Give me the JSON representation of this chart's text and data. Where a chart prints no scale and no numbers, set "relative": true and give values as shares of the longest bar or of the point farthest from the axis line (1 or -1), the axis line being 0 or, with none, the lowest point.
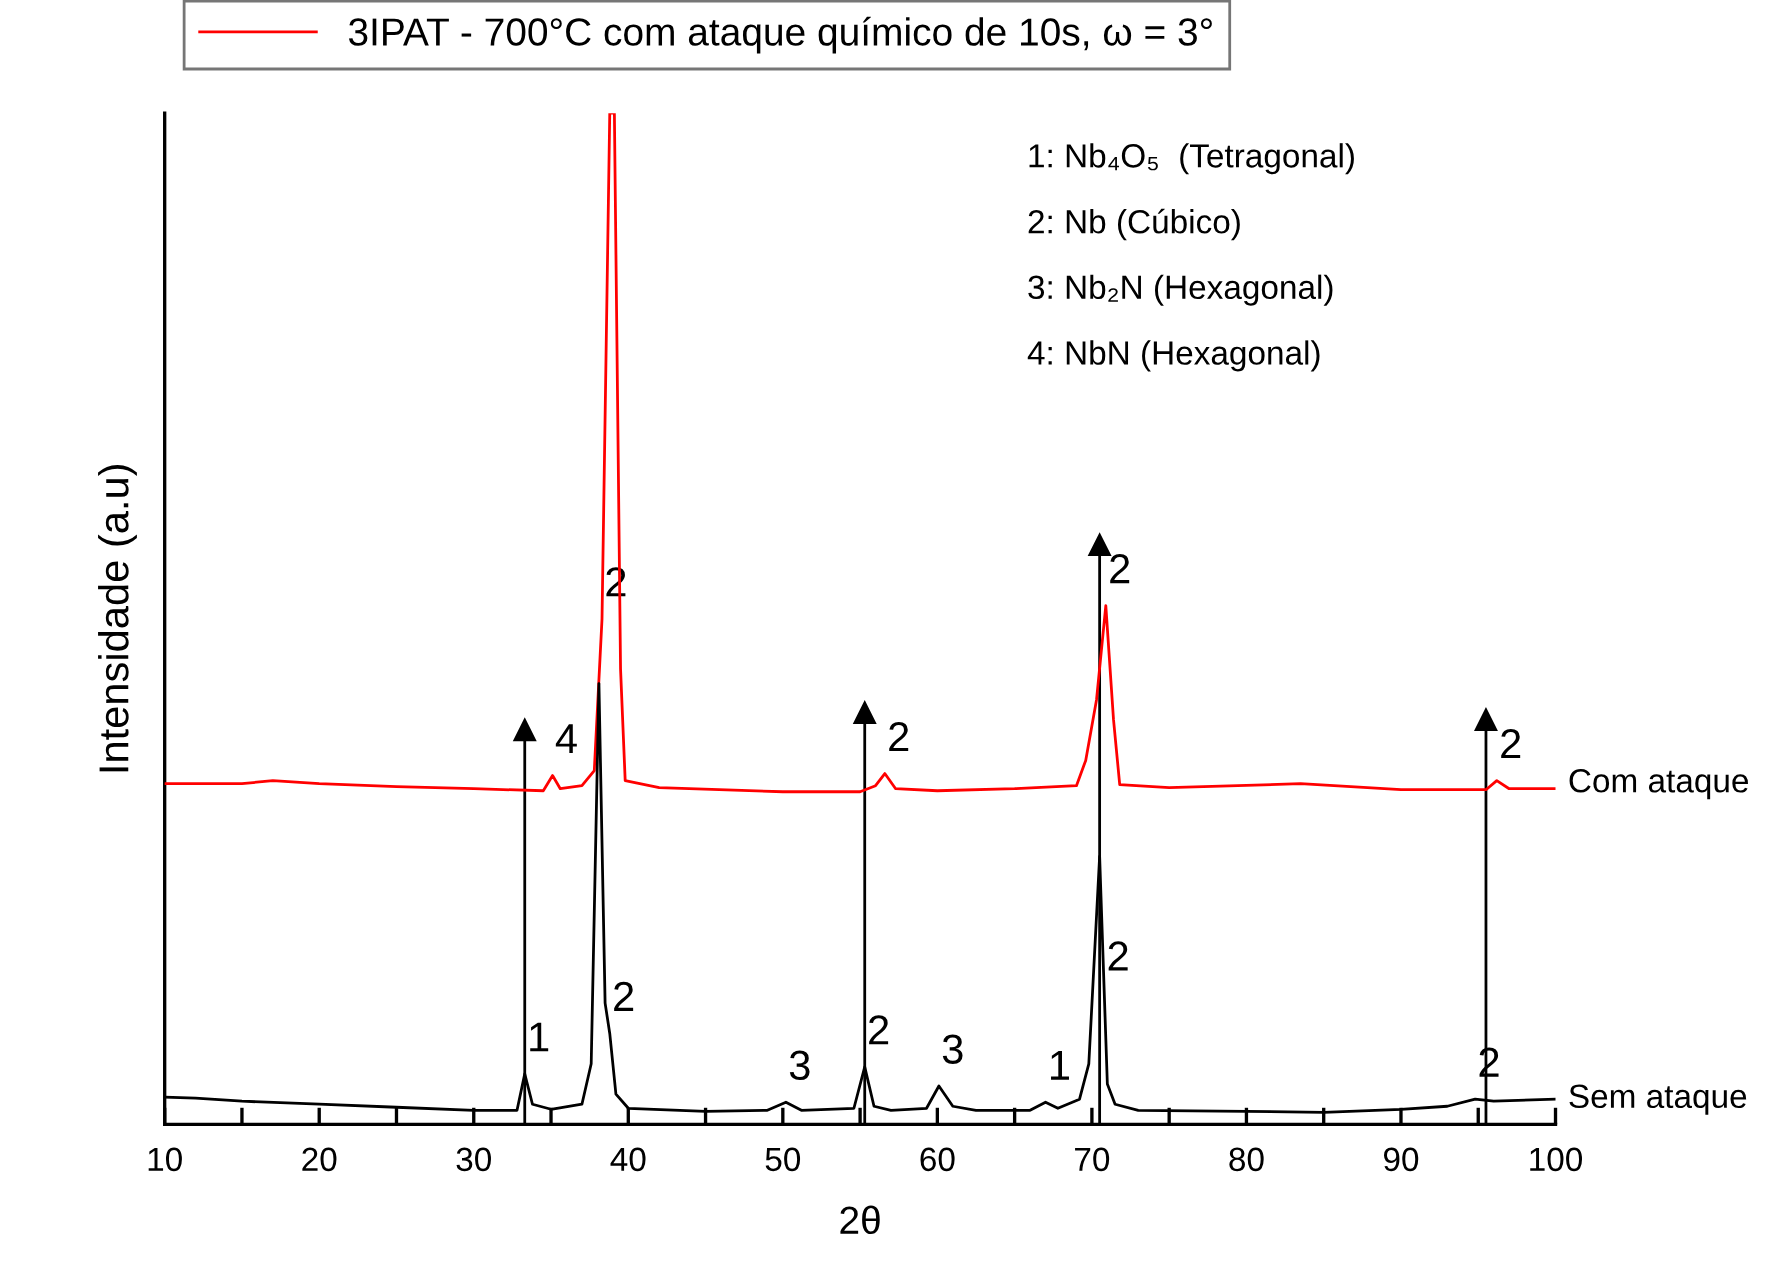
{
  "chart_data": {
    "type": "line",
    "relative": true,
    "xlabel": "2θ",
    "ylabel": "Intensidade (a.u)",
    "xlim": [
      10,
      100
    ],
    "xticks": [
      10,
      {
        "value": 15,
        "label": null
      },
      20,
      {
        "value": 25,
        "label": null
      },
      30,
      {
        "value": 35,
        "label": null
      },
      40,
      {
        "value": 45,
        "label": null
      },
      50,
      {
        "value": 55,
        "label": null
      },
      60,
      {
        "value": 65,
        "label": null
      },
      70,
      {
        "value": 75,
        "label": null
      },
      80,
      {
        "value": 85,
        "label": null
      },
      90,
      {
        "value": 95,
        "label": null
      },
      100
    ],
    "legend": "top",
    "grid": false,
    "marker": "none",
    "line_style": "solid",
    "series": [
      {
        "color": "#000000",
        "x": [
          10,
          12,
          15,
          20,
          25,
          30,
          32.8,
          33.3,
          33.8,
          35,
          37,
          37.6,
          38.1,
          38.5,
          38.8,
          39.2,
          40,
          45,
          49,
          50.2,
          51.2,
          54.6,
          55.3,
          55.9,
          57,
          59.3,
          60.1,
          61,
          62.5,
          66,
          67,
          67.8,
          69.2,
          69.8,
          70.5,
          71,
          71.5,
          73,
          80,
          85,
          90,
          93,
          94.8,
          96,
          100
        ],
        "values": [
          0.027,
          0.026,
          0.023,
          0.02,
          0.017,
          0.014,
          0.014,
          0.05,
          0.02,
          0.015,
          0.02,
          0.06,
          0.436,
          0.12,
          0.09,
          0.03,
          0.016,
          0.013,
          0.014,
          0.022,
          0.014,
          0.016,
          0.057,
          0.018,
          0.014,
          0.016,
          0.038,
          0.018,
          0.014,
          0.014,
          0.022,
          0.016,
          0.025,
          0.06,
          0.265,
          0.04,
          0.02,
          0.014,
          0.013,
          0.012,
          0.015,
          0.018,
          0.025,
          0.023,
          0.025
        ]
      },
      {
        "name": "3IPAT - 700°C com ataque químico de 10s, ω = 3°",
        "color": "#ff0000",
        "x": [
          10,
          15,
          17,
          20,
          25,
          30,
          34.5,
          35.1,
          35.6,
          37,
          37.8,
          38.3,
          38.8,
          39.1,
          39.5,
          39.8,
          42,
          50,
          55,
          56,
          56.6,
          57.3,
          60,
          65,
          69,
          69.6,
          70.3,
          70.9,
          71.4,
          71.8,
          75,
          83.5,
          90,
          95.5,
          96.2,
          97,
          100
        ],
        "values": [
          0.337,
          0.337,
          0.34,
          0.337,
          0.334,
          0.332,
          0.33,
          0.345,
          0.332,
          0.335,
          0.35,
          0.5,
          1.0,
          1.0,
          0.45,
          0.34,
          0.333,
          0.329,
          0.329,
          0.335,
          0.347,
          0.332,
          0.33,
          0.332,
          0.335,
          0.36,
          0.42,
          0.513,
          0.4,
          0.336,
          0.333,
          0.337,
          0.331,
          0.331,
          0.34,
          0.332,
          0.332
        ]
      }
    ],
    "annotations": [
      "1: Nb₄O₅  (Tetragonal)",
      "2: Nb (Cúbico)",
      "3: Nb₂N (Hexagonal)",
      "4: NbN (Hexagonal)",
      {
        "text": "Com ataque",
        "x": 100,
        "y": 0.337
      },
      {
        "text": "Sem ataque",
        "x": 100,
        "y": 0.025
      },
      {
        "text": "1",
        "x": 33.3,
        "y": 0.05
      },
      {
        "text": "2",
        "x": 38.8,
        "y": 0.09
      },
      {
        "text": "3",
        "x": 50.2,
        "y": 0.022
      },
      {
        "text": "2",
        "x": 55.3,
        "y": 0.057
      },
      {
        "text": "3",
        "x": 60.1,
        "y": 0.038
      },
      {
        "text": "1",
        "x": 67,
        "y": 0.022
      },
      {
        "text": "2",
        "x": 70.8,
        "y": 0.13
      },
      {
        "text": "2",
        "x": 94.8,
        "y": 0.025
      },
      {
        "text": "4",
        "x": 35.1,
        "y": 0.345
      },
      {
        "text": "2",
        "x": 38.3,
        "y": 0.5
      },
      {
        "text": "2",
        "x": 56.6,
        "y": 0.347
      },
      {
        "text": "2",
        "x": 70.9,
        "y": 0.513
      },
      {
        "text": "2",
        "x": 96.2,
        "y": 0.34
      }
    ],
    "ref_lines": [
      {
        "axis": "x",
        "value": 33.3,
        "color": "#000000"
      },
      {
        "axis": "x",
        "value": 55.3,
        "color": "#000000"
      },
      {
        "axis": "x",
        "value": 70.5,
        "color": "#000000"
      },
      {
        "axis": "x",
        "value": 95.5,
        "color": "#000000"
      }
    ]
  }
}
